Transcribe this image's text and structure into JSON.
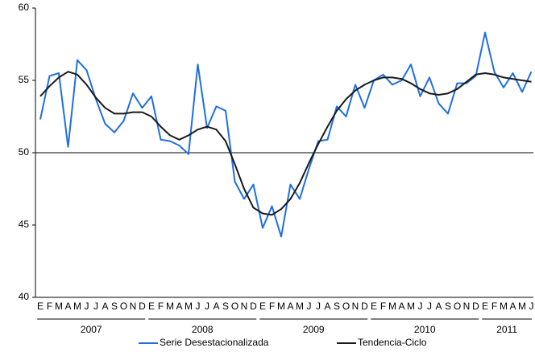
{
  "chart_data": {
    "type": "line",
    "categories": [
      "E",
      "F",
      "M",
      "A",
      "M",
      "J",
      "J",
      "A",
      "S",
      "O",
      "N",
      "D",
      "E",
      "F",
      "M",
      "A",
      "M",
      "J",
      "J",
      "A",
      "S",
      "O",
      "N",
      "D",
      "E",
      "F",
      "M",
      "A",
      "M",
      "J",
      "J",
      "A",
      "S",
      "O",
      "N",
      "D",
      "E",
      "F",
      "M",
      "A",
      "M",
      "J",
      "J",
      "A",
      "S",
      "O",
      "N",
      "D",
      "E",
      "F",
      "M",
      "A",
      "M",
      "J"
    ],
    "years": [
      "2007",
      "2008",
      "2009",
      "2010",
      "2011"
    ],
    "series": [
      {
        "name": "Serie Desestacionalizada",
        "color": "#1f6fe0",
        "values": [
          52.3,
          55.3,
          55.5,
          50.4,
          56.4,
          55.7,
          53.7,
          52.0,
          51.4,
          52.2,
          54.1,
          53.1,
          53.9,
          50.9,
          50.8,
          50.5,
          49.9,
          56.1,
          51.7,
          53.2,
          52.9,
          48.0,
          46.8,
          47.8,
          44.8,
          46.3,
          44.2,
          47.8,
          46.8,
          48.9,
          50.8,
          50.9,
          53.2,
          52.5,
          54.7,
          53.1,
          55.0,
          55.4,
          54.7,
          55.0,
          56.1,
          53.9,
          55.2,
          53.4,
          52.7,
          54.8,
          54.8,
          55.3,
          58.3,
          55.6,
          54.5,
          55.5,
          54.2,
          55.6
        ]
      },
      {
        "name": "Tendencia-Ciclo",
        "color": "#1a1a1a",
        "values": [
          53.9,
          54.6,
          55.2,
          55.6,
          55.4,
          54.7,
          53.8,
          53.1,
          52.7,
          52.7,
          52.8,
          52.8,
          52.5,
          51.8,
          51.2,
          50.9,
          51.2,
          51.6,
          51.8,
          51.6,
          50.8,
          49.2,
          47.5,
          46.2,
          45.8,
          45.7,
          46.1,
          46.8,
          47.9,
          49.3,
          50.6,
          51.8,
          52.9,
          53.7,
          54.3,
          54.7,
          55.0,
          55.2,
          55.2,
          55.1,
          54.8,
          54.4,
          54.1,
          54.0,
          54.1,
          54.4,
          54.9,
          55.4,
          55.5,
          55.4,
          55.2,
          55.1,
          55.0,
          54.9
        ]
      }
    ],
    "ylim": [
      40,
      60
    ],
    "yticks": [
      40,
      45,
      50,
      55,
      60
    ],
    "reference_line": 50,
    "legend": "bottom"
  }
}
